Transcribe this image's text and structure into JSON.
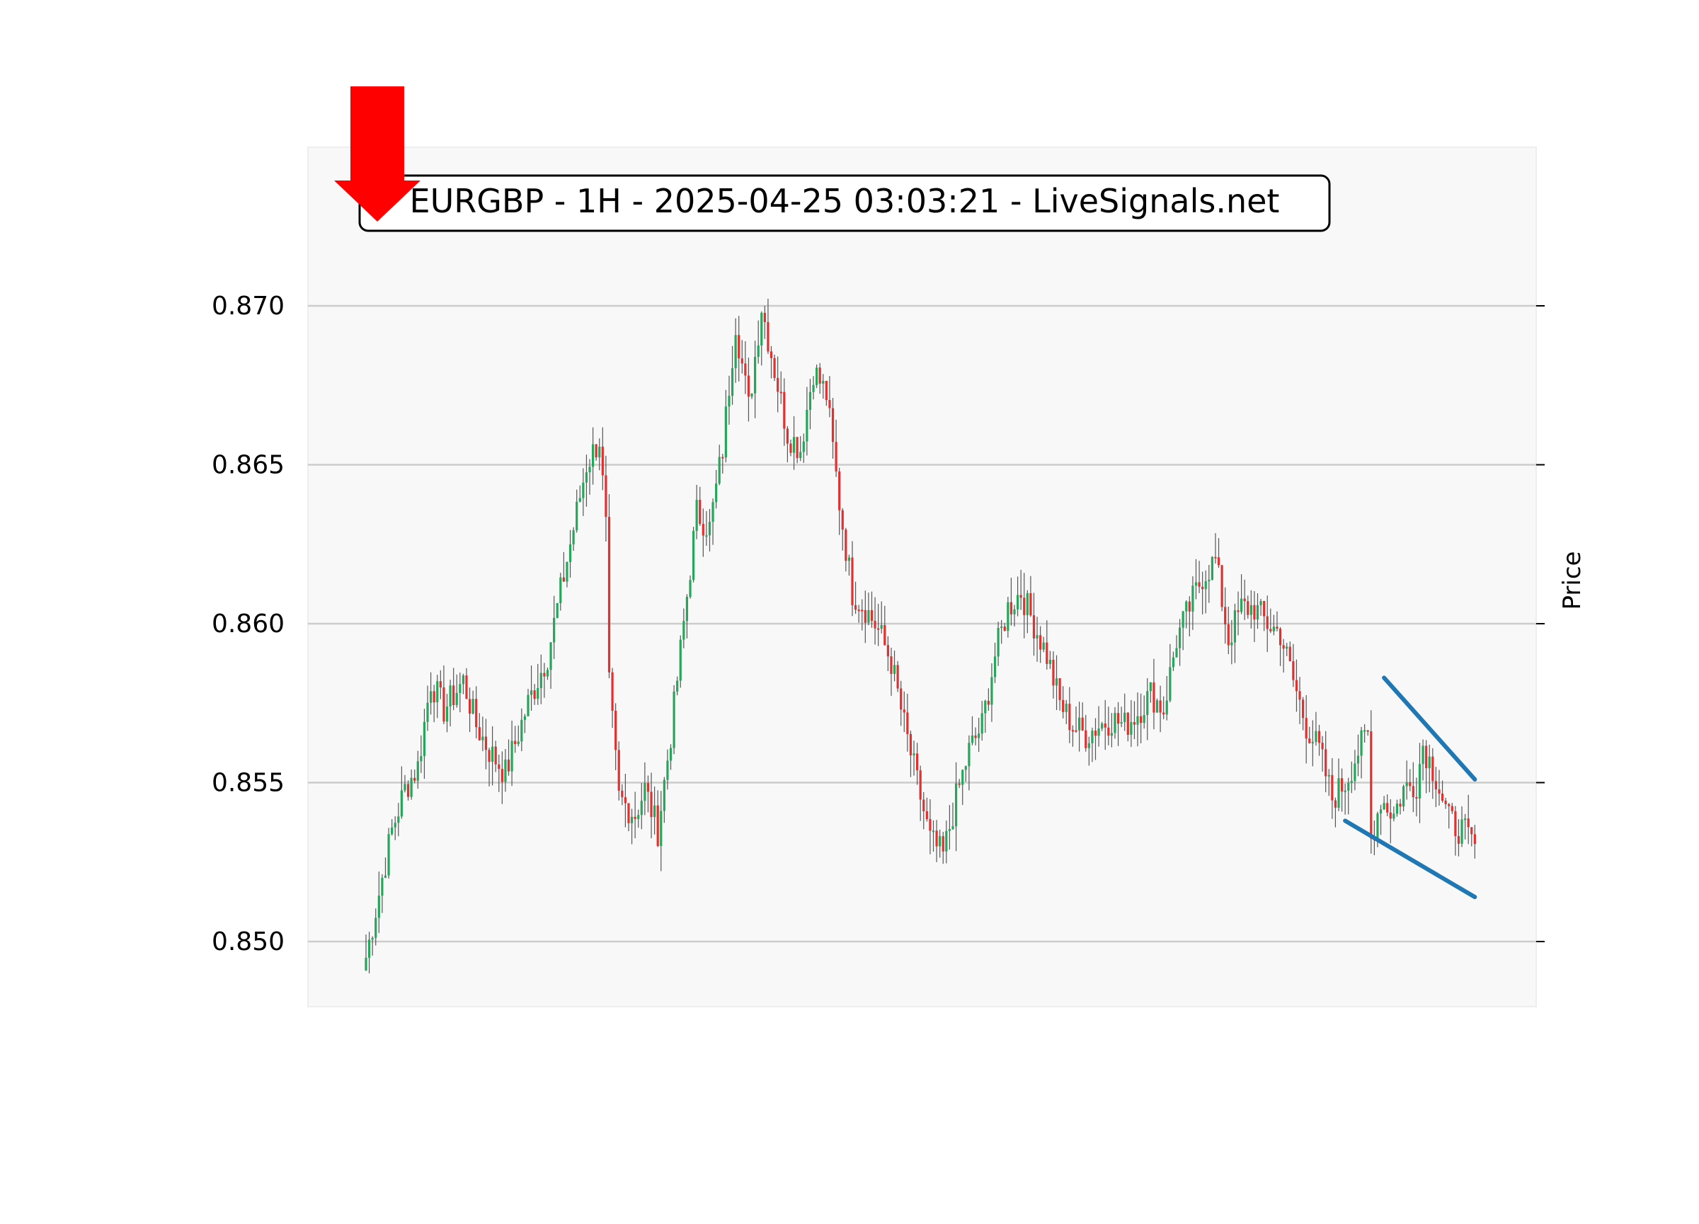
{
  "chart_data": {
    "type": "candlestick",
    "title": "EURGBP - 1H - 2025-04-25 03:03:21 - LiveSignals.net",
    "xlabel": "",
    "ylabel": "Price",
    "ylim": [
      0.848,
      0.875
    ],
    "yticks": [
      0.85,
      0.855,
      0.86,
      0.865,
      0.87
    ],
    "ytick_labels": [
      "0.850",
      "0.855",
      "0.860",
      "0.865",
      "0.870"
    ],
    "grid": "horizontal",
    "signal": "sell",
    "colors": {
      "up": "#26a65b",
      "down": "#e03030",
      "wick": "#555555",
      "pattern": "#1f77b4",
      "signal_arrow": "#ff0000",
      "plot_background": "#f8f8f8",
      "grid": "#cccccc"
    },
    "close_path": [
      [
        0,
        0.8495
      ],
      [
        4,
        0.8515
      ],
      [
        8,
        0.8535
      ],
      [
        12,
        0.8548
      ],
      [
        16,
        0.8555
      ],
      [
        20,
        0.8582
      ],
      [
        24,
        0.8573
      ],
      [
        30,
        0.8582
      ],
      [
        34,
        0.8568
      ],
      [
        38,
        0.856
      ],
      [
        43,
        0.8553
      ],
      [
        50,
        0.8575
      ],
      [
        56,
        0.859
      ],
      [
        62,
        0.862
      ],
      [
        68,
        0.865
      ],
      [
        72,
        0.8658
      ],
      [
        74,
        0.863
      ],
      [
        75,
        0.858
      ],
      [
        78,
        0.8545
      ],
      [
        83,
        0.854
      ],
      [
        86,
        0.8548
      ],
      [
        90,
        0.8535
      ],
      [
        94,
        0.8565
      ],
      [
        98,
        0.86
      ],
      [
        102,
        0.8635
      ],
      [
        106,
        0.863
      ],
      [
        110,
        0.8655
      ],
      [
        114,
        0.8695
      ],
      [
        118,
        0.8668
      ],
      [
        122,
        0.87
      ],
      [
        126,
        0.868
      ],
      [
        130,
        0.866
      ],
      [
        134,
        0.8655
      ],
      [
        138,
        0.868
      ],
      [
        142,
        0.8672
      ],
      [
        146,
        0.8638
      ],
      [
        150,
        0.861
      ],
      [
        154,
        0.8605
      ],
      [
        158,
        0.8598
      ],
      [
        162,
        0.8588
      ],
      [
        166,
        0.8568
      ],
      [
        170,
        0.855
      ],
      [
        174,
        0.8532
      ],
      [
        178,
        0.8527
      ],
      [
        182,
        0.8545
      ],
      [
        186,
        0.856
      ],
      [
        190,
        0.8568
      ],
      [
        194,
        0.859
      ],
      [
        198,
        0.8605
      ],
      [
        202,
        0.861
      ],
      [
        206,
        0.86
      ],
      [
        210,
        0.859
      ],
      [
        214,
        0.8575
      ],
      [
        218,
        0.8568
      ],
      [
        222,
        0.8565
      ],
      [
        226,
        0.8568
      ],
      [
        230,
        0.857
      ],
      [
        234,
        0.8568
      ],
      [
        238,
        0.8572
      ],
      [
        242,
        0.8578
      ],
      [
        246,
        0.8573
      ],
      [
        250,
        0.8595
      ],
      [
        254,
        0.8605
      ],
      [
        258,
        0.8615
      ],
      [
        262,
        0.862
      ],
      [
        266,
        0.8595
      ],
      [
        270,
        0.8605
      ],
      [
        274,
        0.8605
      ],
      [
        278,
        0.86
      ],
      [
        282,
        0.8597
      ],
      [
        286,
        0.8582
      ],
      [
        290,
        0.8568
      ],
      [
        294,
        0.856
      ],
      [
        298,
        0.8545
      ],
      [
        302,
        0.855
      ],
      [
        306,
        0.856
      ],
      [
        309,
        0.8565
      ],
      [
        310,
        0.8532
      ],
      [
        313,
        0.8545
      ],
      [
        317,
        0.854
      ],
      [
        320,
        0.8548
      ],
      [
        324,
        0.855
      ],
      [
        326,
        0.8562
      ],
      [
        330,
        0.8552
      ],
      [
        334,
        0.8538
      ],
      [
        338,
        0.8535
      ],
      [
        342,
        0.853
      ]
    ],
    "pattern": {
      "name": "falling wedge",
      "upper_line": {
        "start": [
          314,
          0.8583
        ],
        "end": [
          342,
          0.8551
        ]
      },
      "lower_line": {
        "start": [
          302,
          0.8538
        ],
        "end": [
          342,
          0.8514
        ]
      }
    }
  }
}
